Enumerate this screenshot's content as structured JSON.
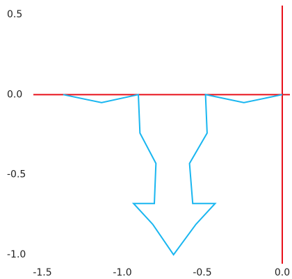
{
  "chart_data": {
    "type": "line",
    "title": "",
    "xlabel": "",
    "ylabel": "",
    "xlim": [
      -1.5,
      0.0
    ],
    "ylim": [
      -1.0,
      0.5
    ],
    "grid": false,
    "x_ticks": [
      -1.5,
      -1.0,
      -0.5,
      0.0
    ],
    "y_ticks": [
      0.5,
      0.0,
      -0.5,
      -1.0
    ],
    "x_tick_labels": [
      "-1.5",
      "-1.0",
      "-0.5",
      "0.0"
    ],
    "y_tick_labels": [
      "0.5",
      "0.0",
      "-0.5",
      "-1.0"
    ],
    "axis_color": "#e8101a",
    "series": [
      {
        "color": "#19b6f0",
        "points": [
          [
            -1.37,
            0.0
          ],
          [
            -1.13,
            -0.05
          ],
          [
            -0.9,
            0.0
          ],
          [
            -0.89,
            -0.24
          ],
          [
            -0.79,
            -0.43
          ],
          [
            -0.8,
            -0.68
          ],
          [
            -0.93,
            -0.68
          ],
          [
            -0.81,
            -0.81
          ],
          [
            -0.68,
            -1.0
          ],
          [
            -0.54,
            -0.81
          ],
          [
            -0.42,
            -0.68
          ],
          [
            -0.56,
            -0.68
          ],
          [
            -0.58,
            -0.43
          ],
          [
            -0.47,
            -0.24
          ],
          [
            -0.48,
            0.0
          ],
          [
            -0.24,
            -0.05
          ],
          [
            0.0,
            0.0
          ]
        ]
      }
    ]
  }
}
